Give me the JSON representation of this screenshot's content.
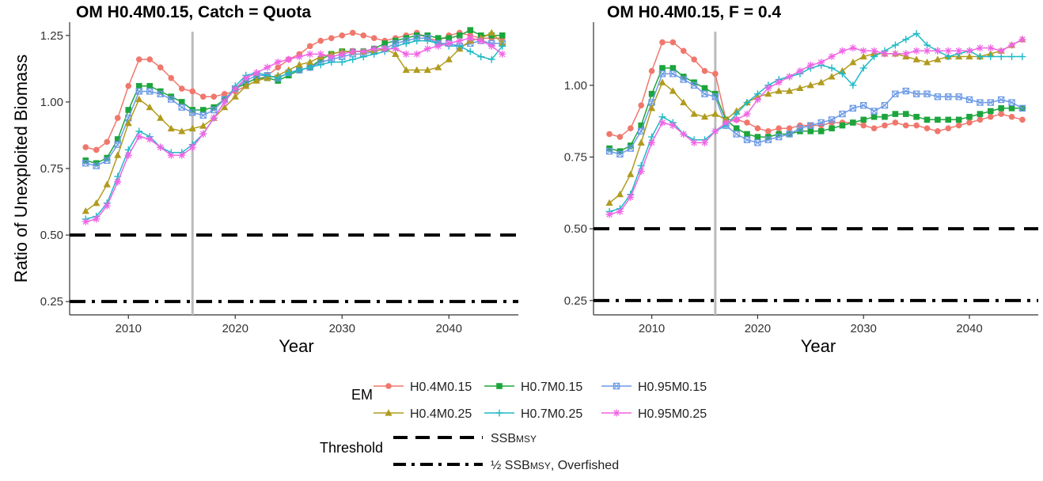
{
  "chart_data": [
    {
      "type": "line",
      "title": "OM H0.4M0.15, Catch = Quota",
      "xlabel": "Year",
      "ylabel": "Ratio of Unexploited Biomass",
      "xlim": [
        2004.5,
        2046.5
      ],
      "ylim": [
        0.2,
        1.3
      ],
      "xticks": [
        2010,
        2020,
        2030,
        2040
      ],
      "yticks": [
        0.25,
        0.5,
        0.75,
        1.0,
        1.25
      ],
      "ytick_labels": [
        "0.25",
        "0.50",
        "0.75",
        "1.00",
        "1.25"
      ],
      "vline_x": 2016,
      "x": [
        2006,
        2007,
        2008,
        2009,
        2010,
        2011,
        2012,
        2013,
        2014,
        2015,
        2016,
        2017,
        2018,
        2019,
        2020,
        2021,
        2022,
        2023,
        2024,
        2025,
        2026,
        2027,
        2028,
        2029,
        2030,
        2031,
        2032,
        2033,
        2034,
        2035,
        2036,
        2037,
        2038,
        2039,
        2040,
        2041,
        2042,
        2043,
        2044,
        2045
      ],
      "thresholds": [
        {
          "name": "SSBMSY",
          "y": 0.5,
          "style": "dash"
        },
        {
          "name": "½ SSBMSY, Overfished",
          "y": 0.25,
          "style": "dashdot"
        }
      ],
      "series": [
        {
          "name": "H0.4M0.15",
          "marker": "circle",
          "values": [
            0.83,
            0.82,
            0.85,
            0.94,
            1.06,
            1.16,
            1.16,
            1.13,
            1.09,
            1.05,
            1.04,
            1.02,
            1.02,
            1.03,
            1.04,
            1.06,
            1.08,
            1.1,
            1.13,
            1.16,
            1.18,
            1.21,
            1.23,
            1.24,
            1.25,
            1.26,
            1.25,
            1.24,
            1.23,
            1.24,
            1.25,
            1.26,
            1.24,
            1.23,
            1.25,
            1.26,
            1.25,
            1.24,
            1.24,
            1.24
          ]
        },
        {
          "name": "H0.7M0.15",
          "marker": "square",
          "values": [
            0.78,
            0.77,
            0.79,
            0.86,
            0.97,
            1.06,
            1.06,
            1.04,
            1.02,
            1.0,
            0.97,
            0.97,
            0.98,
            1.01,
            1.05,
            1.07,
            1.09,
            1.09,
            1.08,
            1.1,
            1.12,
            1.13,
            1.16,
            1.18,
            1.19,
            1.19,
            1.19,
            1.2,
            1.22,
            1.23,
            1.24,
            1.25,
            1.25,
            1.24,
            1.24,
            1.25,
            1.27,
            1.25,
            1.25,
            1.25
          ]
        },
        {
          "name": "H0.95M0.15",
          "marker": "boxx",
          "values": [
            0.77,
            0.76,
            0.78,
            0.84,
            0.94,
            1.04,
            1.04,
            1.03,
            1.01,
            0.98,
            0.96,
            0.95,
            0.97,
            1.01,
            1.05,
            1.08,
            1.1,
            1.1,
            1.09,
            1.11,
            1.12,
            1.13,
            1.15,
            1.16,
            1.17,
            1.18,
            1.18,
            1.19,
            1.2,
            1.22,
            1.23,
            1.24,
            1.24,
            1.22,
            1.22,
            1.21,
            1.22,
            1.23,
            1.22,
            1.22
          ]
        },
        {
          "name": "H0.4M0.25",
          "marker": "triangle",
          "values": [
            0.59,
            0.62,
            0.69,
            0.8,
            0.92,
            1.01,
            0.98,
            0.94,
            0.9,
            0.89,
            0.9,
            0.91,
            0.94,
            0.98,
            1.02,
            1.06,
            1.08,
            1.09,
            1.1,
            1.12,
            1.14,
            1.15,
            1.17,
            1.18,
            1.19,
            1.19,
            1.19,
            1.19,
            1.2,
            1.18,
            1.12,
            1.12,
            1.12,
            1.13,
            1.16,
            1.2,
            1.23,
            1.24,
            1.26,
            1.22
          ]
        },
        {
          "name": "H0.7M0.25",
          "marker": "plus",
          "values": [
            0.56,
            0.57,
            0.62,
            0.72,
            0.82,
            0.89,
            0.87,
            0.83,
            0.81,
            0.81,
            0.84,
            0.88,
            0.94,
            1.0,
            1.06,
            1.1,
            1.11,
            1.1,
            1.09,
            1.11,
            1.12,
            1.13,
            1.14,
            1.15,
            1.15,
            1.16,
            1.17,
            1.18,
            1.19,
            1.21,
            1.22,
            1.23,
            1.23,
            1.22,
            1.21,
            1.21,
            1.19,
            1.17,
            1.16,
            1.21
          ]
        },
        {
          "name": "H0.95M0.25",
          "marker": "star",
          "values": [
            0.55,
            0.56,
            0.61,
            0.7,
            0.8,
            0.87,
            0.86,
            0.83,
            0.8,
            0.8,
            0.83,
            0.88,
            0.94,
            1.0,
            1.05,
            1.09,
            1.11,
            1.13,
            1.15,
            1.16,
            1.17,
            1.18,
            1.18,
            1.17,
            1.18,
            1.19,
            1.19,
            1.2,
            1.2,
            1.2,
            1.18,
            1.18,
            1.2,
            1.21,
            1.22,
            1.23,
            1.24,
            1.23,
            1.21,
            1.18
          ]
        }
      ]
    },
    {
      "type": "line",
      "title": "OM H0.4M0.15, F = 0.4",
      "xlabel": "Year",
      "ylabel": "",
      "xlim": [
        2004.5,
        2046.5
      ],
      "ylim": [
        0.2,
        1.22
      ],
      "xticks": [
        2010,
        2020,
        2030,
        2040
      ],
      "yticks": [
        0.25,
        0.5,
        0.75,
        1.0
      ],
      "ytick_labels": [
        "0.25",
        "0.50",
        "0.75",
        "1.00"
      ],
      "vline_x": 2016,
      "x": [
        2006,
        2007,
        2008,
        2009,
        2010,
        2011,
        2012,
        2013,
        2014,
        2015,
        2016,
        2017,
        2018,
        2019,
        2020,
        2021,
        2022,
        2023,
        2024,
        2025,
        2026,
        2027,
        2028,
        2029,
        2030,
        2031,
        2032,
        2033,
        2034,
        2035,
        2036,
        2037,
        2038,
        2039,
        2040,
        2041,
        2042,
        2043,
        2044,
        2045
      ],
      "thresholds": [
        {
          "name": "SSBMSY",
          "y": 0.5,
          "style": "dash"
        },
        {
          "name": "½ SSBMSY, Overfished",
          "y": 0.25,
          "style": "dashdot"
        }
      ],
      "series": [
        {
          "name": "H0.4M0.15",
          "marker": "circle",
          "values": [
            0.83,
            0.82,
            0.85,
            0.93,
            1.05,
            1.15,
            1.15,
            1.12,
            1.09,
            1.05,
            1.04,
            0.88,
            0.88,
            0.87,
            0.85,
            0.84,
            0.85,
            0.85,
            0.86,
            0.86,
            0.86,
            0.87,
            0.87,
            0.87,
            0.86,
            0.85,
            0.86,
            0.87,
            0.86,
            0.86,
            0.85,
            0.84,
            0.85,
            0.86,
            0.87,
            0.88,
            0.89,
            0.9,
            0.89,
            0.88
          ]
        },
        {
          "name": "H0.7M0.15",
          "marker": "square",
          "values": [
            0.78,
            0.77,
            0.79,
            0.86,
            0.97,
            1.06,
            1.06,
            1.03,
            1.01,
            0.99,
            0.97,
            0.88,
            0.85,
            0.83,
            0.82,
            0.82,
            0.83,
            0.83,
            0.84,
            0.84,
            0.84,
            0.85,
            0.86,
            0.87,
            0.88,
            0.89,
            0.89,
            0.9,
            0.9,
            0.89,
            0.88,
            0.88,
            0.88,
            0.88,
            0.89,
            0.9,
            0.91,
            0.92,
            0.92,
            0.92
          ]
        },
        {
          "name": "H0.95M0.15",
          "marker": "boxx",
          "values": [
            0.77,
            0.76,
            0.78,
            0.84,
            0.94,
            1.04,
            1.04,
            1.02,
            1.0,
            0.97,
            0.96,
            0.86,
            0.83,
            0.81,
            0.8,
            0.81,
            0.82,
            0.83,
            0.85,
            0.86,
            0.87,
            0.88,
            0.9,
            0.92,
            0.93,
            0.91,
            0.93,
            0.97,
            0.98,
            0.97,
            0.97,
            0.96,
            0.96,
            0.96,
            0.95,
            0.94,
            0.94,
            0.95,
            0.94,
            0.92
          ]
        },
        {
          "name": "H0.4M0.25",
          "marker": "triangle",
          "values": [
            0.59,
            0.62,
            0.69,
            0.8,
            0.92,
            1.01,
            0.98,
            0.94,
            0.9,
            0.89,
            0.9,
            0.88,
            0.91,
            0.94,
            0.96,
            0.97,
            0.98,
            0.98,
            0.99,
            1.0,
            1.01,
            1.03,
            1.05,
            1.08,
            1.1,
            1.11,
            1.11,
            1.11,
            1.1,
            1.09,
            1.08,
            1.09,
            1.1,
            1.1,
            1.1,
            1.1,
            1.11,
            1.12,
            1.14,
            1.16
          ]
        },
        {
          "name": "H0.7M0.25",
          "marker": "plus",
          "values": [
            0.56,
            0.57,
            0.62,
            0.72,
            0.82,
            0.89,
            0.87,
            0.83,
            0.81,
            0.81,
            0.84,
            0.86,
            0.9,
            0.94,
            0.97,
            1.0,
            1.02,
            1.03,
            1.04,
            1.06,
            1.07,
            1.06,
            1.04,
            1.0,
            1.06,
            1.1,
            1.12,
            1.14,
            1.16,
            1.18,
            1.14,
            1.12,
            1.1,
            1.11,
            1.12,
            1.1,
            1.1,
            1.1,
            1.1,
            1.1
          ]
        },
        {
          "name": "H0.95M0.25",
          "marker": "star",
          "values": [
            0.55,
            0.56,
            0.61,
            0.7,
            0.8,
            0.87,
            0.86,
            0.83,
            0.8,
            0.8,
            0.84,
            0.87,
            0.88,
            0.9,
            0.95,
            0.99,
            1.01,
            1.03,
            1.05,
            1.07,
            1.08,
            1.1,
            1.12,
            1.13,
            1.12,
            1.12,
            1.11,
            1.11,
            1.11,
            1.12,
            1.12,
            1.12,
            1.12,
            1.12,
            1.12,
            1.13,
            1.13,
            1.12,
            1.14,
            1.16
          ]
        }
      ]
    }
  ],
  "colors": {
    "H0.4M0.15": "#F0776C",
    "H0.7M0.15": "#1CA53C",
    "H0.95M0.15": "#6C9AE6",
    "H0.4M0.25": "#B19B1E",
    "H0.7M0.25": "#1EBAC6",
    "H0.95M0.25": "#F064E6",
    "vline": "#BBBBBB",
    "threshold": "#000000"
  },
  "legend": {
    "em_title": "EM",
    "threshold_title": "Threshold",
    "em_items": [
      {
        "label": "H0.4M0.15",
        "marker": "circle"
      },
      {
        "label": "H0.7M0.15",
        "marker": "square"
      },
      {
        "label": "H0.95M0.15",
        "marker": "boxx"
      },
      {
        "label": "H0.4M0.25",
        "marker": "triangle"
      },
      {
        "label": "H0.7M0.25",
        "marker": "plus"
      },
      {
        "label": "H0.95M0.25",
        "marker": "star"
      }
    ],
    "threshold_items": [
      {
        "main": "SSB",
        "sub": "MSY",
        "rest": "",
        "style": "dash"
      },
      {
        "main": "½ SSB",
        "sub": "MSY",
        "rest": ", Overfished",
        "style": "dashdot"
      }
    ]
  }
}
